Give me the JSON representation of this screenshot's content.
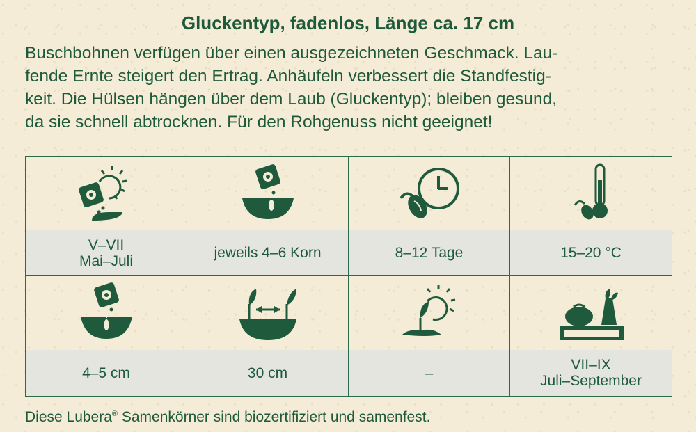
{
  "headline": "Gluckentyp, fadenlos, Länge ca. 17 cm",
  "description": "Buschbohnen verfügen über einen ausgezeichneten Geschmack. Laufende Ernte steigert den Ertrag. Anhäufeln verbessert die Standfestigkeit. Die Hülsen hängen über dem Laub (Gluckentyp); bleiben gesund, da sie schnell abtrocknen. Für den Rohgenuss nicht geeignet!",
  "description_lines": [
    "Buschbohnen verfügen über einen ausgezeichneten Geschmack. Lau-",
    "fende Ernte steigert den Ertrag. Anhäufeln verbessert die Standfestig-",
    "keit. Die Hülsen hängen über dem Laub (Gluckentyp); bleiben gesund,",
    "da sie schnell abtrocknen. Für den Rohgenuss nicht geeignet!"
  ],
  "table": {
    "cells": [
      {
        "icon": "sowing-time-sun-icon",
        "line1": "V–VII",
        "line2": "Mai–Juli"
      },
      {
        "icon": "seeds-per-hole-icon",
        "line1": "jeweils 4–6 Korn",
        "line2": ""
      },
      {
        "icon": "germination-clock-icon",
        "line1": "8–12 Tage",
        "line2": ""
      },
      {
        "icon": "germination-temperature-icon",
        "line1": "15–20 °C",
        "line2": ""
      },
      {
        "icon": "sowing-depth-icon",
        "line1": "4–5 cm",
        "line2": ""
      },
      {
        "icon": "plant-spacing-icon",
        "line1": "30 cm",
        "line2": ""
      },
      {
        "icon": "sun-location-icon",
        "line1": "–",
        "line2": ""
      },
      {
        "icon": "harvest-crate-icon",
        "line1": "VII–IX",
        "line2": "Juli–September"
      }
    ]
  },
  "footer": {
    "text_before": "Diese Lubera",
    "registered": "®",
    "text_after": " Samenkörner sind biozertifiziert und samenfest."
  },
  "colors": {
    "text": "#1e5a3a",
    "icon": "#1f5a3c",
    "label_bg": "#e3e5de",
    "background": "#f4ecd6"
  }
}
